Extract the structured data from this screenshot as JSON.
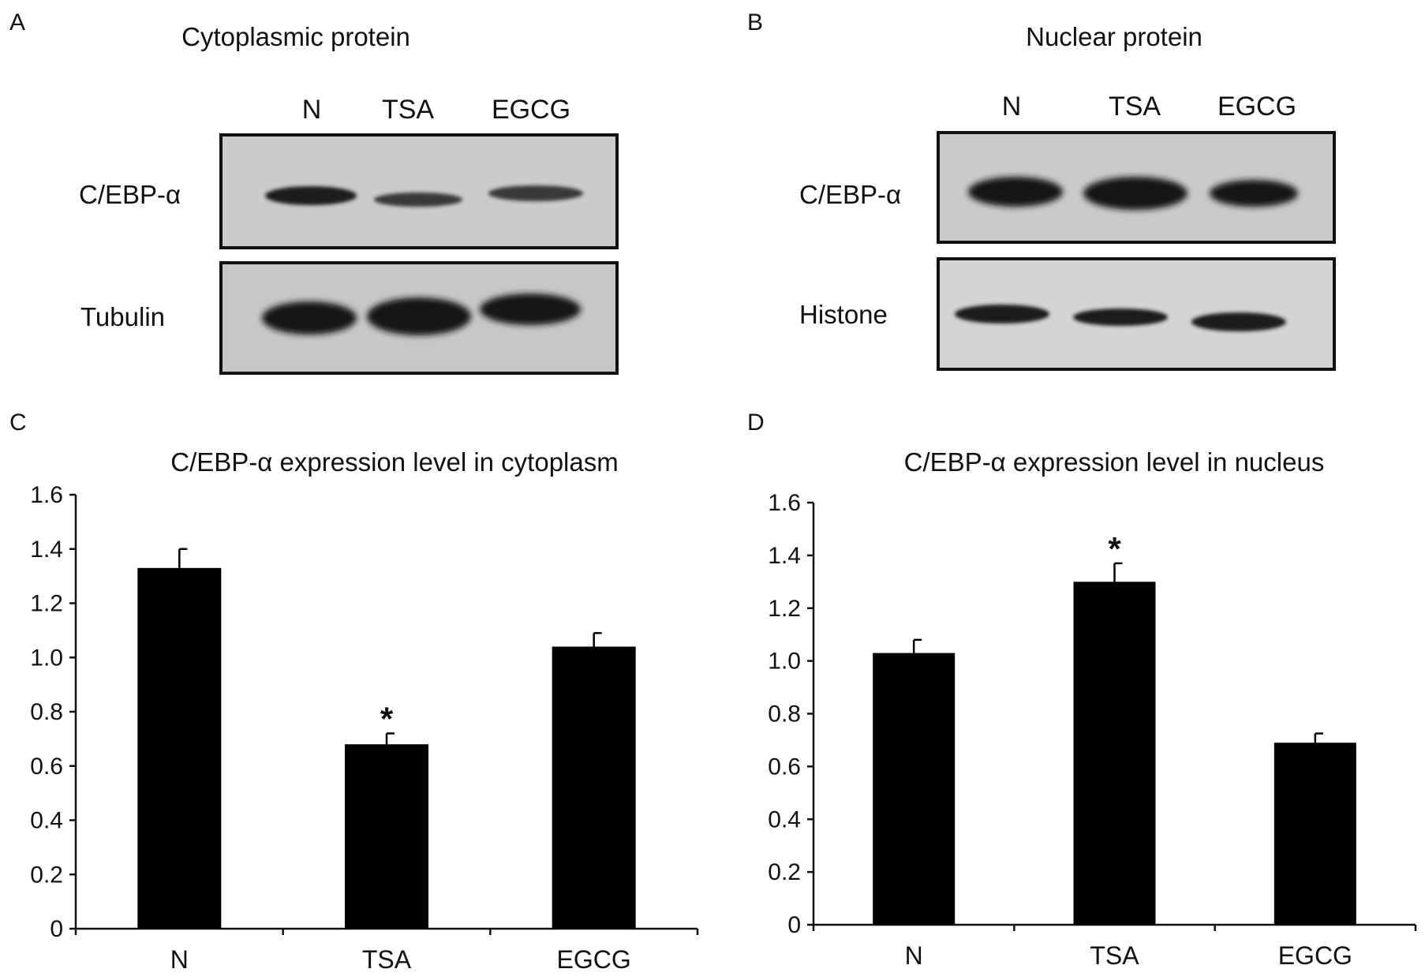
{
  "panels": {
    "a": {
      "letter": "A",
      "title": "Cytoplasmic protein",
      "lanes": [
        "N",
        "TSA",
        "EGCG"
      ],
      "rows": [
        "C/EBP-α",
        "Tubulin"
      ]
    },
    "b": {
      "letter": "B",
      "title": "Nuclear protein",
      "lanes": [
        "N",
        "TSA",
        "EGCG"
      ],
      "rows": [
        "C/EBP-α",
        "Histone"
      ]
    },
    "c": {
      "letter": "C"
    },
    "d": {
      "letter": "D"
    }
  },
  "colors": {
    "bar": "#000000",
    "axis": "#111111",
    "blot_background": "#c9c9c9",
    "band": "#1a1a1a"
  },
  "chart_data": [
    {
      "type": "bar",
      "title": "C/EBP-α expression level in cytoplasm",
      "categories": [
        "N",
        "TSA",
        "EGCG"
      ],
      "values": [
        1.33,
        0.68,
        1.04
      ],
      "errors": [
        0.07,
        0.04,
        0.05
      ],
      "significance": [
        "",
        "*",
        ""
      ],
      "ylim": [
        0,
        1.6
      ],
      "yticks": [
        "0",
        "0.2",
        "0.4",
        "0.6",
        "0.8",
        "1.0",
        "1.2",
        "1.4",
        "1.6"
      ],
      "xlabel": "",
      "ylabel": "",
      "grid": false
    },
    {
      "type": "bar",
      "title": "C/EBP-α expression level in nucleus",
      "categories": [
        "N",
        "TSA",
        "EGCG"
      ],
      "values": [
        1.03,
        1.3,
        0.69
      ],
      "errors": [
        0.05,
        0.07,
        0.035
      ],
      "significance": [
        "",
        "*",
        ""
      ],
      "ylim": [
        0,
        1.6
      ],
      "yticks": [
        "0",
        "0.2",
        "0.4",
        "0.6",
        "0.8",
        "1.0",
        "1.2",
        "1.4",
        "1.6"
      ],
      "xlabel": "",
      "ylabel": "",
      "grid": false
    }
  ]
}
